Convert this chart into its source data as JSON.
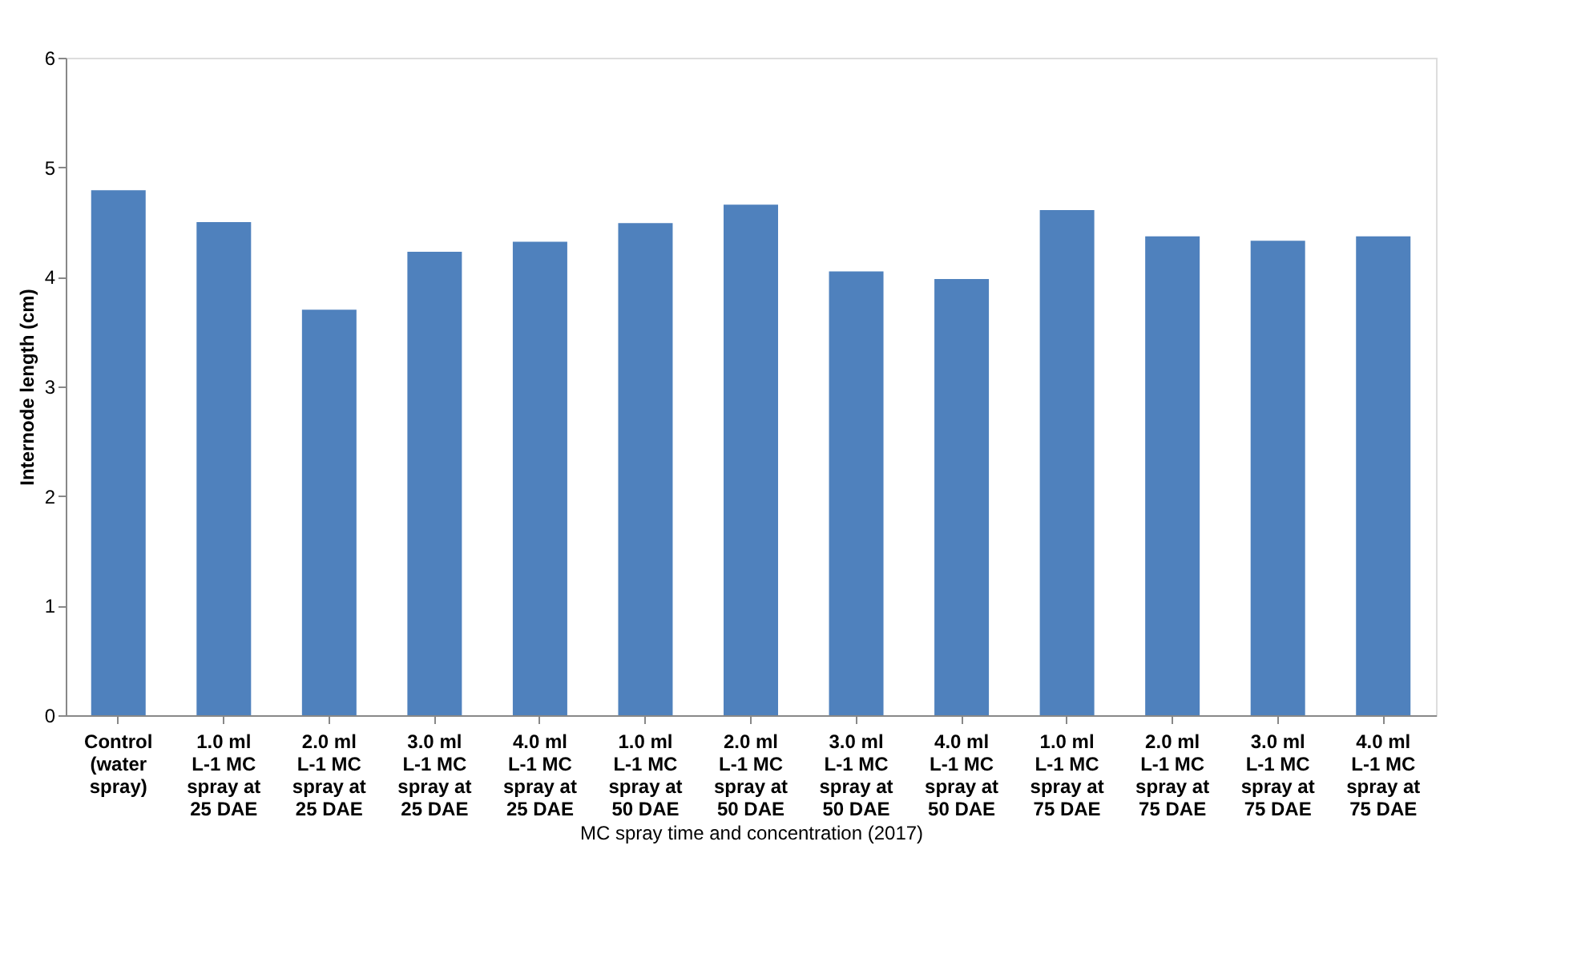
{
  "chart_data": {
    "type": "bar",
    "xlabel": "MC spray time and concentration (2017)",
    "ylabel": "Internode length (cm)",
    "categories": [
      "Control\n(water\nspray)",
      "1.0 ml\nL-1 MC\nspray at\n25 DAE",
      "2.0 ml\nL-1 MC\nspray at\n25 DAE",
      "3.0 ml\nL-1 MC\nspray at\n25 DAE",
      "4.0 ml\nL-1 MC\nspray at\n25 DAE",
      "1.0 ml\nL-1 MC\nspray at\n50 DAE",
      "2.0 ml\nL-1 MC\nspray at\n50 DAE",
      "3.0 ml\nL-1 MC\nspray at\n50 DAE",
      "4.0 ml\nL-1 MC\nspray at\n50 DAE",
      "1.0 ml\nL-1 MC\nspray at\n75 DAE",
      "2.0  ml\nL-1 MC\nspray at\n75 DAE",
      "3.0 ml\nL-1 MC\nspray at\n75 DAE",
      "4.0 ml\nL-1 MC\nspray at\n75 DAE"
    ],
    "values": [
      4.79,
      4.5,
      3.7,
      4.23,
      4.32,
      4.49,
      4.66,
      4.05,
      3.98,
      4.61,
      4.37,
      4.33,
      4.37
    ],
    "color": "#4f81bd",
    "ylim": [
      0,
      6
    ],
    "yticks": [
      0,
      1,
      2,
      3,
      4,
      5,
      6
    ],
    "grid": false
  }
}
